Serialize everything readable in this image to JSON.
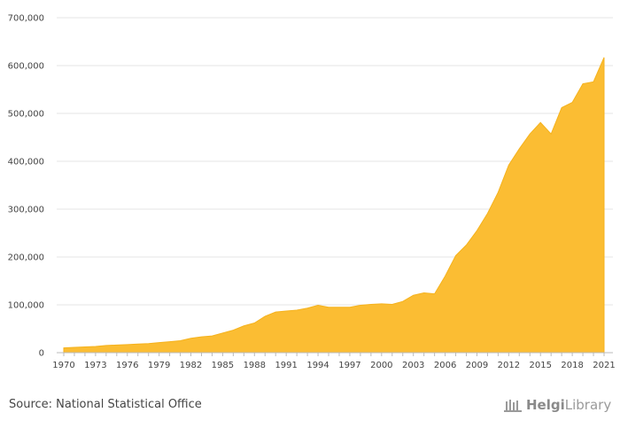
{
  "chart_data": {
    "type": "area",
    "x": [
      1970,
      1971,
      1972,
      1973,
      1974,
      1975,
      1976,
      1977,
      1978,
      1979,
      1980,
      1981,
      1982,
      1983,
      1984,
      1985,
      1986,
      1987,
      1988,
      1989,
      1990,
      1991,
      1992,
      1993,
      1994,
      1995,
      1996,
      1997,
      1998,
      1999,
      2000,
      2001,
      2002,
      2003,
      2004,
      2005,
      2006,
      2007,
      2008,
      2009,
      2010,
      2011,
      2012,
      2013,
      2014,
      2015,
      2016,
      2017,
      2018,
      2019,
      2020,
      2021
    ],
    "values": [
      10000,
      11000,
      12000,
      13000,
      15000,
      16000,
      17000,
      18000,
      19000,
      21000,
      23000,
      25000,
      30000,
      33000,
      35000,
      41000,
      47000,
      56000,
      62000,
      76000,
      85000,
      87000,
      89000,
      93000,
      99000,
      95000,
      95000,
      95000,
      99000,
      101000,
      102000,
      101000,
      107000,
      120000,
      125000,
      123000,
      160000,
      203000,
      225000,
      255000,
      291000,
      335000,
      392000,
      426000,
      457000,
      481000,
      457000,
      512000,
      523000,
      562000,
      566000,
      617000
    ],
    "x_tick_labels": [
      "1970",
      "1973",
      "1976",
      "1979",
      "1982",
      "1985",
      "1988",
      "1991",
      "1994",
      "1997",
      "2000",
      "2003",
      "2006",
      "2009",
      "2012",
      "2015",
      "2018",
      "2021"
    ],
    "y_tick_labels": [
      "0",
      "100,000",
      "200,000",
      "300,000",
      "400,000",
      "500,000",
      "600,000",
      "700,000"
    ],
    "ylim": [
      0,
      700000
    ],
    "xlim": [
      1970,
      2021
    ],
    "grid": true,
    "fill_color": "#fbbd33",
    "title": "",
    "xlabel": "",
    "ylabel": ""
  },
  "footer": {
    "source": "Source: National Statistical Office",
    "logo_text_bold": "Helgi",
    "logo_text_rest": "Library"
  }
}
